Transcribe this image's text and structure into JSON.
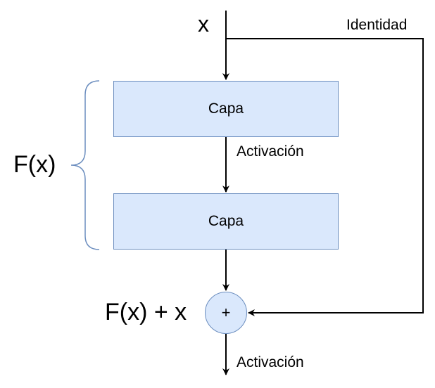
{
  "diagram": {
    "input_label": "x",
    "identity_label": "Identidad",
    "layer_top_label": "Capa",
    "layer_bottom_label": "Capa",
    "activation_label_mid": "Activación",
    "activation_label_out": "Activación",
    "function_label": "F(x)",
    "sum_label": "F(x) + x",
    "add_symbol": "+"
  },
  "colors": {
    "box_fill": "#dae8fc",
    "box_stroke": "#6c8ebf",
    "brace_stroke": "#6c8ebf",
    "line": "#000000"
  }
}
